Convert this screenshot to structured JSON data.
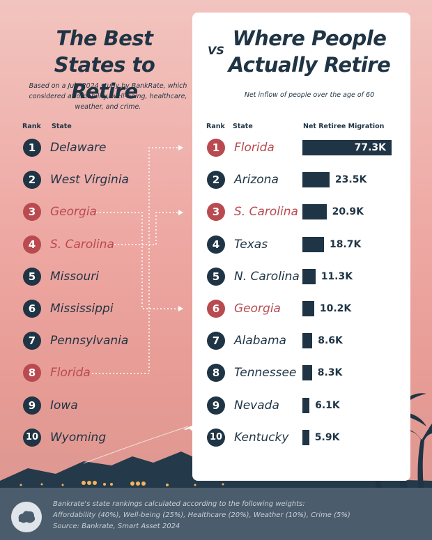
{
  "left": {
    "title": "The Best States to Retire",
    "subtitle": "Based on a July 2024 study by BankRate, which considered affordability, well-being, healthcare, weather, and crime.",
    "col_rank": "Rank",
    "col_state": "State",
    "rows": [
      {
        "rank": "1",
        "state": "Delaware",
        "highlight": false
      },
      {
        "rank": "2",
        "state": "West Virginia",
        "highlight": false
      },
      {
        "rank": "3",
        "state": "Georgia",
        "highlight": true
      },
      {
        "rank": "4",
        "state": "S. Carolina",
        "highlight": true
      },
      {
        "rank": "5",
        "state": "Missouri",
        "highlight": false
      },
      {
        "rank": "6",
        "state": "Mississippi",
        "highlight": false
      },
      {
        "rank": "7",
        "state": "Pennsylvania",
        "highlight": false
      },
      {
        "rank": "8",
        "state": "Florida",
        "highlight": true
      },
      {
        "rank": "9",
        "state": "Iowa",
        "highlight": false
      },
      {
        "rank": "10",
        "state": "Wyoming",
        "highlight": false
      }
    ]
  },
  "vs": "VS",
  "right": {
    "title": "Where People Actually Retire",
    "subtitle": "Net inflow of people over the age of 60",
    "col_rank": "Rank",
    "col_state": "State",
    "col_value": "Net Retiree Migration",
    "rows": [
      {
        "rank": "1",
        "state": "Florida",
        "highlight": true,
        "label": "77.3K"
      },
      {
        "rank": "2",
        "state": "Arizona",
        "highlight": false,
        "label": "23.5K"
      },
      {
        "rank": "3",
        "state": "S. Carolina",
        "highlight": true,
        "label": "20.9K"
      },
      {
        "rank": "4",
        "state": "Texas",
        "highlight": false,
        "label": "18.7K"
      },
      {
        "rank": "5",
        "state": "N. Carolina",
        "highlight": false,
        "label": "11.3K"
      },
      {
        "rank": "6",
        "state": "Georgia",
        "highlight": true,
        "label": "10.2K"
      },
      {
        "rank": "7",
        "state": "Alabama",
        "highlight": false,
        "label": "8.6K"
      },
      {
        "rank": "8",
        "state": "Tennessee",
        "highlight": false,
        "label": "8.3K"
      },
      {
        "rank": "9",
        "state": "Nevada",
        "highlight": false,
        "label": "6.1K"
      },
      {
        "rank": "10",
        "state": "Kentucky",
        "highlight": false,
        "label": "5.9K"
      }
    ]
  },
  "chart_data": {
    "type": "bar",
    "title": "Where People Actually Retire",
    "subtitle": "Net inflow of people over the age of 60",
    "ylabel": "Net Retiree Migration",
    "categories": [
      "Florida",
      "Arizona",
      "S. Carolina",
      "Texas",
      "N. Carolina",
      "Georgia",
      "Alabama",
      "Tennessee",
      "Nevada",
      "Kentucky"
    ],
    "values": [
      77300,
      23500,
      20900,
      18700,
      11300,
      10200,
      8600,
      8300,
      6100,
      5900
    ],
    "orientation": "horizontal"
  },
  "footer": {
    "line1": "Bankrate's state rankings calculated according to the following weights:",
    "line2": "Affordability (40%), Well-being (25%), Healthcare (20%), Weather (10%), Crime (5%)",
    "line3": "Source: Bankrate, Smart Asset 2024"
  },
  "colors": {
    "navy": "#1f3444",
    "highlight": "#b94a4f",
    "background": "#eea7a2",
    "footer": "#4b5d6c"
  },
  "icons": [
    "airplane-icon",
    "palm-tree-icon",
    "brand-logo-icon"
  ]
}
